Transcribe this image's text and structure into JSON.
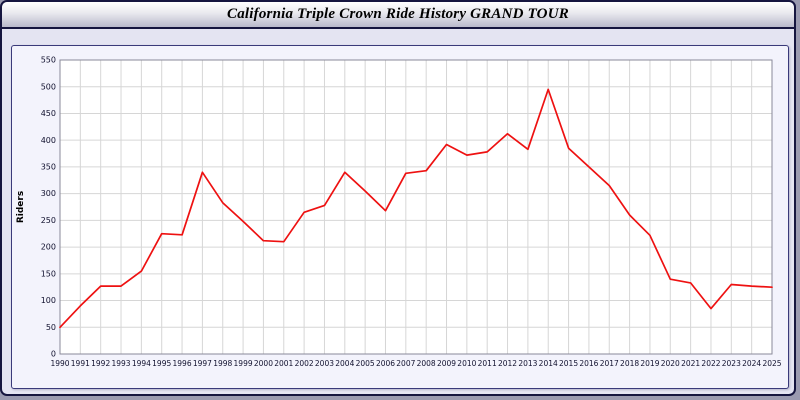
{
  "window": {
    "title": "California Triple Crown Ride History GRAND TOUR"
  },
  "chart_data": {
    "type": "line",
    "title": "California Triple Crown Ride History GRAND TOUR",
    "xlabel": "",
    "ylabel": "Riders",
    "ylim": [
      0,
      550
    ],
    "ytick_step": 50,
    "grid": true,
    "legend": "none",
    "line_color": "#ee1111",
    "grid_color": "#d6d6d6",
    "plot_bg": "#ffffff",
    "tick_color": "#10102e",
    "x": [
      1990,
      1991,
      1992,
      1993,
      1994,
      1995,
      1996,
      1997,
      1998,
      1999,
      2000,
      2001,
      2002,
      2003,
      2004,
      2005,
      2006,
      2007,
      2008,
      2009,
      2010,
      2011,
      2012,
      2013,
      2014,
      2015,
      2016,
      2017,
      2018,
      2019,
      2020,
      2021,
      2022,
      2023,
      2024,
      2025
    ],
    "values": [
      50,
      90,
      127,
      127,
      155,
      225,
      223,
      340,
      283,
      248,
      212,
      210,
      265,
      278,
      340,
      305,
      268,
      338,
      343,
      392,
      372,
      378,
      412,
      383,
      495,
      385,
      350,
      315,
      260,
      222,
      140,
      133,
      85,
      130,
      127,
      125
    ]
  }
}
